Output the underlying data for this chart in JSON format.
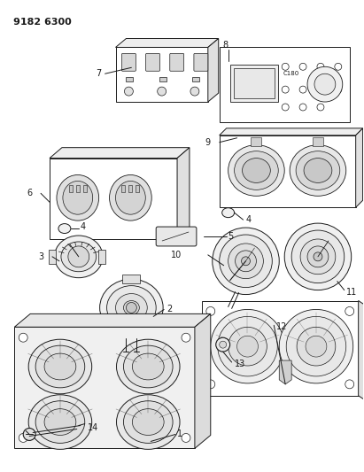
{
  "title": "9182 6300",
  "background_color": "#ffffff",
  "figsize": [
    4.11,
    5.33
  ],
  "dpi": 100,
  "lw": 0.7,
  "color": "#1a1a1a"
}
